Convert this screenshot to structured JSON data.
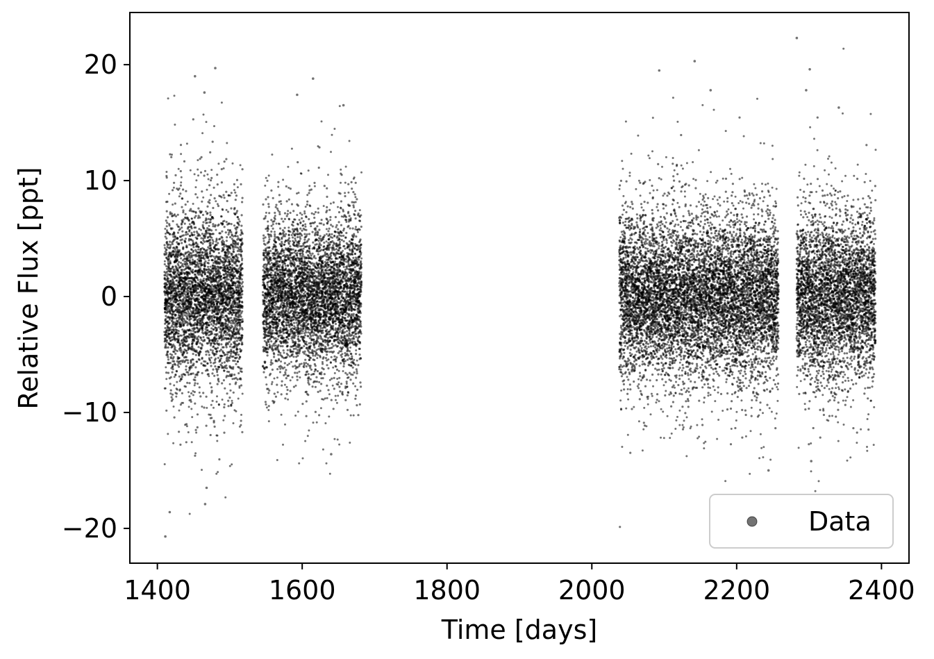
{
  "chart_data": {
    "type": "scatter",
    "title": "",
    "xlabel": "Time [days]",
    "ylabel": "Relative Flux [ppt]",
    "xlim": [
      1362,
      2438
    ],
    "ylim": [
      -23.0,
      24.5
    ],
    "xticks": [
      1400,
      1600,
      1800,
      2000,
      2200,
      2400
    ],
    "xtick_labels": [
      "1400",
      "1600",
      "1800",
      "2000",
      "2200",
      "2400"
    ],
    "yticks": [
      -20,
      -10,
      0,
      10,
      20
    ],
    "ytick_labels": [
      "−20",
      "−10",
      "0",
      "10",
      "20"
    ],
    "grid": false,
    "legend_position": "lower-right",
    "series": [
      {
        "name": "Data",
        "marker": "dot",
        "color": "#000000",
        "alpha": 0.55,
        "segments": [
          {
            "x_start": 1410,
            "x_end": 1518,
            "typical_spread_ppt": 8.5
          },
          {
            "x_start": 1546,
            "x_end": 1682,
            "typical_spread_ppt": 7.5
          },
          {
            "x_start": 2038,
            "x_end": 2258,
            "typical_spread_ppt": 8.0
          },
          {
            "x_start": 2283,
            "x_end": 2392,
            "typical_spread_ppt": 8.0
          }
        ],
        "notable_points": [
          {
            "x": 1411,
            "y": -20.7
          },
          {
            "x": 1417,
            "y": -18.6
          },
          {
            "x": 1452,
            "y": 19.0
          },
          {
            "x": 1465,
            "y": 17.6
          },
          {
            "x": 1480,
            "y": 19.7
          },
          {
            "x": 1466,
            "y": -17.9
          },
          {
            "x": 1468,
            "y": -16.5
          },
          {
            "x": 1615,
            "y": 18.8
          },
          {
            "x": 1593,
            "y": 17.4
          },
          {
            "x": 1657,
            "y": 16.5
          },
          {
            "x": 1640,
            "y": -13.6
          },
          {
            "x": 2093,
            "y": 19.5
          },
          {
            "x": 2142,
            "y": 20.3
          },
          {
            "x": 2164,
            "y": 17.8
          },
          {
            "x": 2283,
            "y": 22.3
          },
          {
            "x": 2301,
            "y": 19.6
          },
          {
            "x": 2296,
            "y": 17.8
          },
          {
            "x": 2341,
            "y": 16.3
          },
          {
            "x": 2244,
            "y": -15.0
          },
          {
            "x": 2303,
            "y": -14.2
          }
        ]
      }
    ]
  }
}
